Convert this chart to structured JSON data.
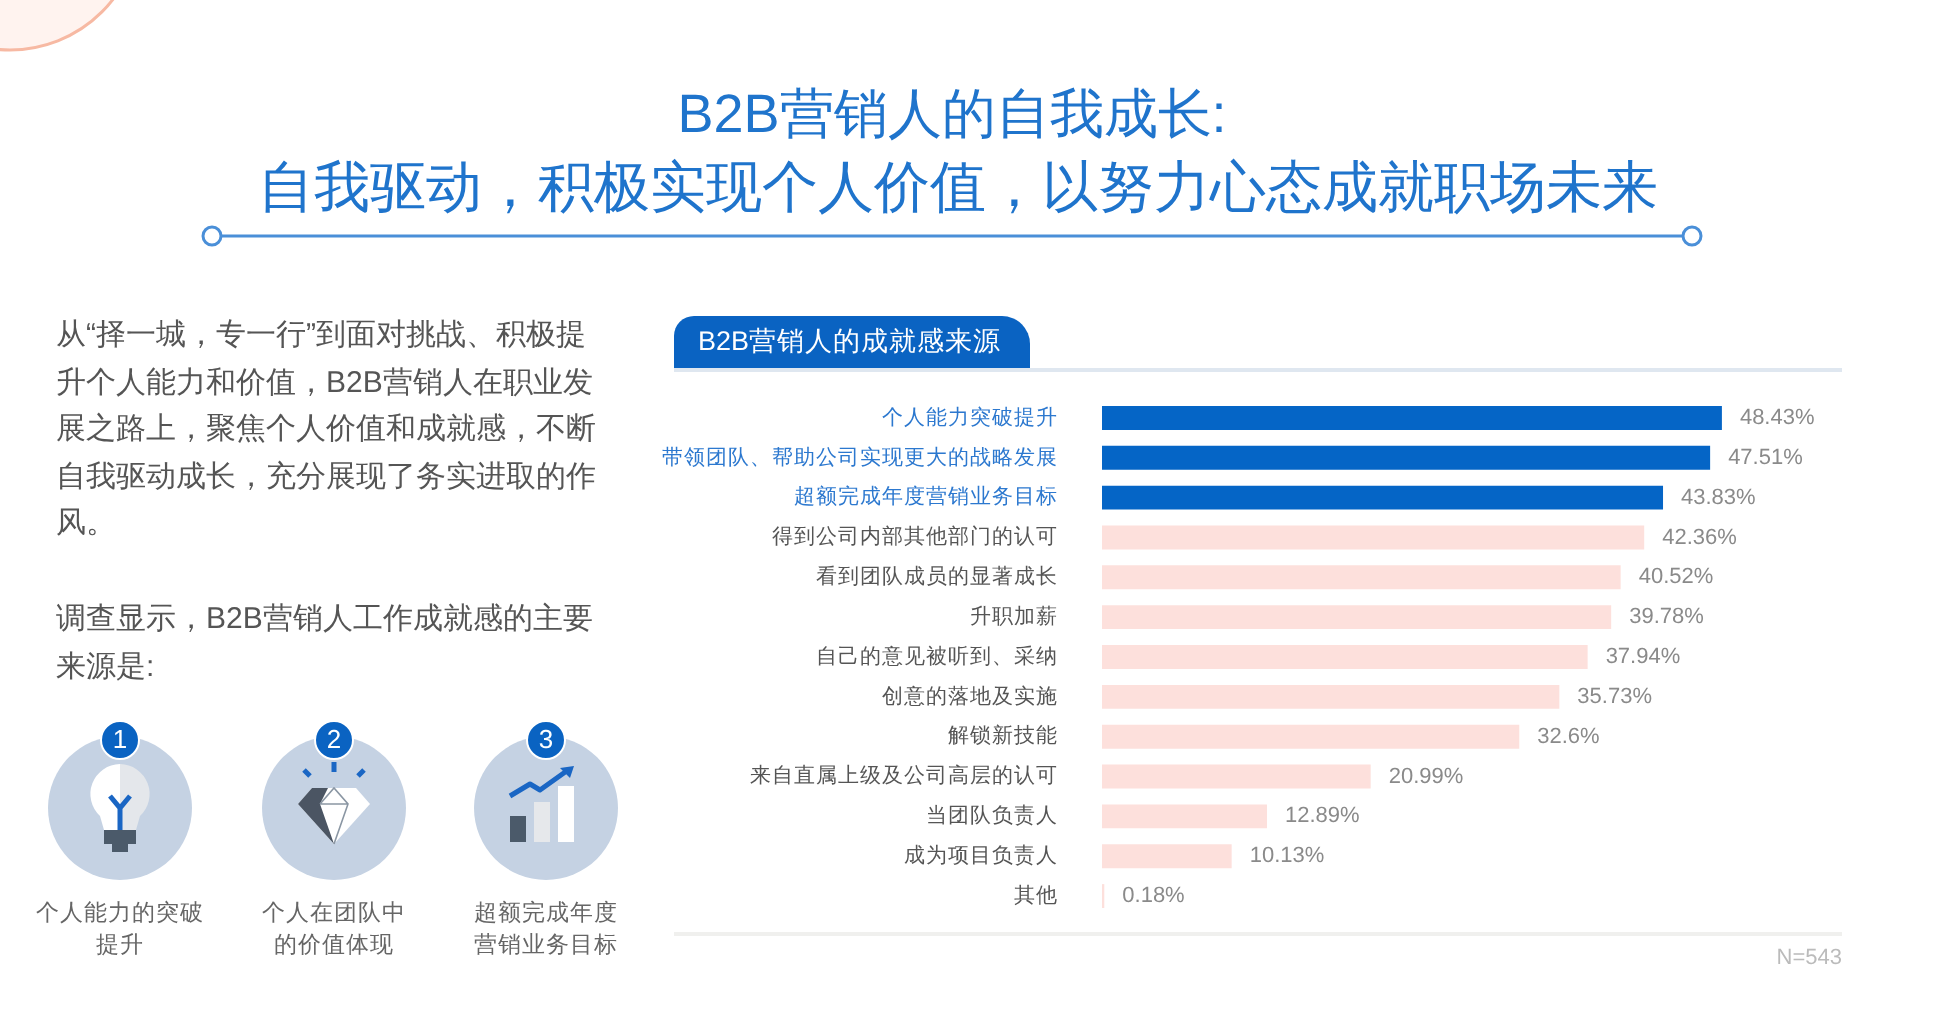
{
  "chart_data": {
    "type": "bar",
    "orientation": "horizontal",
    "title": "B2B营销人的自我成长:",
    "subtitle": "自我驱动，积极实现个人价值，以努力心态成就职场未来",
    "categories": [
      "个人能力突破提升",
      "带领团队、帮助公司实现更大的战略发展",
      "超额完成年度营销业务目标",
      "得到公司内部其他部门的认可",
      "看到团队成员的显著成长",
      "升职加薪",
      "自己的意见被听到、采纳",
      "创意的落地及实施",
      "解锁新技能",
      "来自直属上级及公司高层的认可",
      "当团队负责人",
      "成为项目负责人",
      "其他"
    ],
    "values": [
      48.43,
      47.51,
      43.83,
      42.36,
      40.52,
      39.78,
      37.94,
      35.73,
      32.6,
      20.99,
      12.89,
      10.13,
      0.18
    ],
    "value_labels": [
      "48.43%",
      "47.51%",
      "43.83%",
      "42.36%",
      "40.52%",
      "39.78%",
      "37.94%",
      "35.73%",
      "32.6%",
      "20.99%",
      "12.89%",
      "10.13%",
      "0.18%"
    ],
    "colors": [
      "#0565c6",
      "#0565c6",
      "#0565c6",
      "#fde0dc",
      "#fde0dc",
      "#fde0dc",
      "#fde0dc",
      "#fde0dc",
      "#fde0dc",
      "#fde0dc",
      "#fde0dc",
      "#fde0dc",
      "#fde0dc"
    ],
    "annotations": [
      "B2B营销人的成就感来源",
      "从“择一城，专一行”到面对挑战、积极提升个人能力和价值，B2B营销人在职业发展之路上，聚焦个人价值和成就感，不断自我驱动成长，充分展现了务实进取的作风。",
      "调查显示，B2B营销人工作成就感的主要来源是:",
      "1",
      "个人能力的突破提升",
      "2",
      "个人在团队中的价值体现",
      "3",
      "超额完成年度营销业务目标",
      "N=543"
    ]
  }
}
